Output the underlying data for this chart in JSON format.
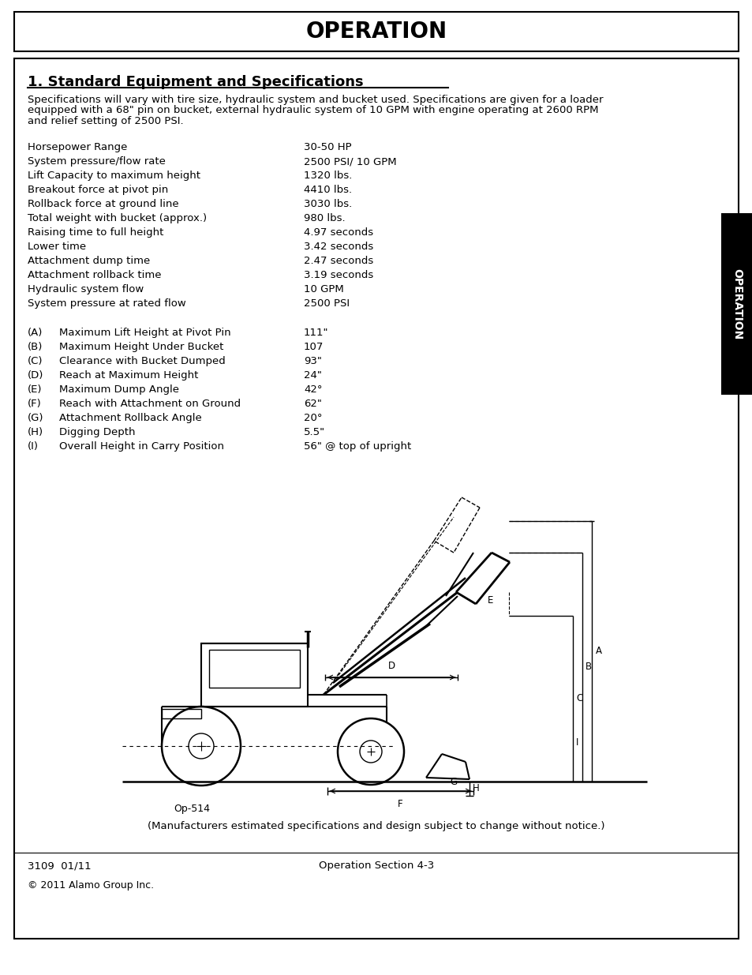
{
  "page_bg": "#ffffff",
  "header_title": "OPERATION",
  "header_font_size": 20,
  "section_title": "1. Standard Equipment and Specifications",
  "section_title_font_size": 13,
  "intro_lines": [
    "Specifications will vary with tire size, hydraulic system and bucket used. Specifications are given for a loader",
    "equipped with a 68\" pin on bucket, external hydraulic system of 10 GPM with engine operating at 2600 RPM",
    "and relief setting of 2500 PSI."
  ],
  "intro_font_size": 9.5,
  "specs": [
    [
      "Horsepower Range",
      "30-50 HP"
    ],
    [
      "System pressure/flow rate",
      "2500 PSI/ 10 GPM"
    ],
    [
      "Lift Capacity to maximum height",
      "1320 lbs."
    ],
    [
      "Breakout force at pivot pin",
      "4410 lbs."
    ],
    [
      "Rollback force at ground line",
      "3030 lbs."
    ],
    [
      "Total weight with bucket (approx.)",
      "980 lbs."
    ],
    [
      "Raising time to full height",
      "4.97 seconds"
    ],
    [
      "Lower time",
      "3.42 seconds"
    ],
    [
      "Attachment dump time",
      "2.47 seconds"
    ],
    [
      "Attachment rollback time",
      "3.19 seconds"
    ],
    [
      "Hydraulic system flow",
      "10 GPM"
    ],
    [
      "System pressure at rated flow",
      "2500 PSI"
    ]
  ],
  "letter_specs": [
    [
      "(A)",
      "Maximum Lift Height at Pivot Pin",
      "111\""
    ],
    [
      "(B)",
      "Maximum Height Under Bucket",
      "107"
    ],
    [
      "(C)",
      "Clearance with Bucket Dumped",
      "93\""
    ],
    [
      "(D)",
      "Reach at Maximum Height",
      "24\""
    ],
    [
      "(E)",
      "Maximum Dump Angle",
      "42°"
    ],
    [
      "(F)",
      "Reach with Attachment on Ground",
      "62\""
    ],
    [
      "(G)",
      "Attachment Rollback Angle",
      "20°"
    ],
    [
      "(H)",
      "Digging Depth",
      "5.5\""
    ],
    [
      "(I)",
      "Overall Height in Carry Position",
      "56\" @ top of upright"
    ]
  ],
  "spec_font_size": 9.5,
  "disclaimer": "(Manufacturers estimated specifications and design subject to change without notice.)",
  "footer_left": "3109  01/11",
  "footer_center": "Operation Section 4-3",
  "copyright": "© 2011 Alamo Group Inc.",
  "tab_text": "OPERATION",
  "tab_bg": "#000000",
  "tab_fg": "#ffffff",
  "image_caption": "Op-514"
}
